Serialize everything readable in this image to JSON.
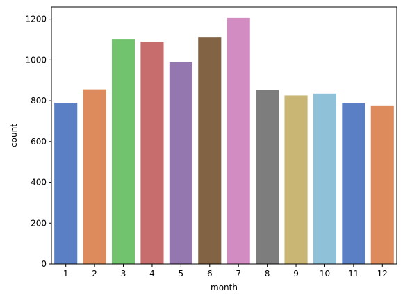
{
  "chart_data": {
    "type": "bar",
    "categories": [
      "1",
      "2",
      "3",
      "4",
      "5",
      "6",
      "7",
      "8",
      "9",
      "10",
      "11",
      "12"
    ],
    "values": [
      790,
      856,
      1103,
      1089,
      991,
      1113,
      1206,
      853,
      826,
      835,
      790,
      777
    ],
    "colors": [
      "#5a7fc5",
      "#dd8a5c",
      "#71c36d",
      "#c86d6d",
      "#9477ae",
      "#826344",
      "#d28cc2",
      "#7d7d7d",
      "#c9b574",
      "#8fc1d9",
      "#5a7fc5",
      "#dd8a5c"
    ],
    "xlabel": "month",
    "ylabel": "count",
    "ylim": [
      0,
      1260
    ],
    "yticks": [
      0,
      200,
      400,
      600,
      800,
      1000,
      1200
    ],
    "grid": false,
    "legend": "none"
  }
}
